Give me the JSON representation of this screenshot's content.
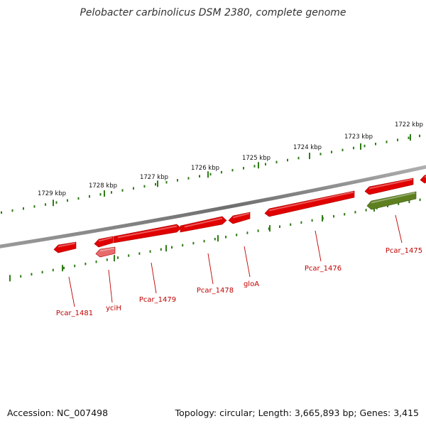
{
  "title": "Pelobacter carbinolicus DSM 2380, complete genome",
  "footer": {
    "accession": "Accession: NC_007498",
    "topology": "Topology: circular; Length: 3,665,893 bp; Genes: 3,415"
  },
  "colors": {
    "backbone": "#7a7a7a",
    "tick": "#2e7d16",
    "gene": "#e00000",
    "gene_pseudo": "#e86b6b",
    "gene_other": "#5e7f1f",
    "label": "#c00000"
  },
  "scale": {
    "unit": "kbp",
    "labels": [
      {
        "kbp": 1729,
        "text": "1729 kbp"
      },
      {
        "kbp": 1728,
        "text": "1728 kbp"
      },
      {
        "kbp": 1727,
        "text": "1727 kbp"
      },
      {
        "kbp": 1726,
        "text": "1726 kbp"
      },
      {
        "kbp": 1725,
        "text": "1725 kbp"
      },
      {
        "kbp": 1724,
        "text": "1724 kbp"
      },
      {
        "kbp": 1723,
        "text": "1723 kbp"
      },
      {
        "kbp": 1722,
        "text": "1722 kbp"
      }
    ]
  },
  "genes": [
    {
      "name": "Pcar_1481",
      "label": "Pcar_1481",
      "type": "cds",
      "strand": "-"
    },
    {
      "name": "yciH",
      "label": "yciH",
      "type": "cds",
      "strand": "-"
    },
    {
      "name": "yciH-pseudo",
      "label": "",
      "type": "pseudo",
      "strand": "-"
    },
    {
      "name": "Pcar_1479",
      "label": "Pcar_1479",
      "type": "cds",
      "strand": "+"
    },
    {
      "name": "Pcar_1478",
      "label": "Pcar_1478",
      "type": "cds",
      "strand": "+"
    },
    {
      "name": "gloA",
      "label": "gloA",
      "type": "cds",
      "strand": "-"
    },
    {
      "name": "Pcar_1476",
      "label": "Pcar_1476",
      "type": "cds",
      "strand": "-"
    },
    {
      "name": "Pcar_1475",
      "label": "Pcar_1475",
      "type": "cds",
      "strand": "-"
    },
    {
      "name": "Pcar_1475-feature",
      "label": "",
      "type": "other",
      "strand": "-"
    },
    {
      "name": "edge-gene",
      "label": "",
      "type": "cds",
      "strand": "-"
    }
  ]
}
